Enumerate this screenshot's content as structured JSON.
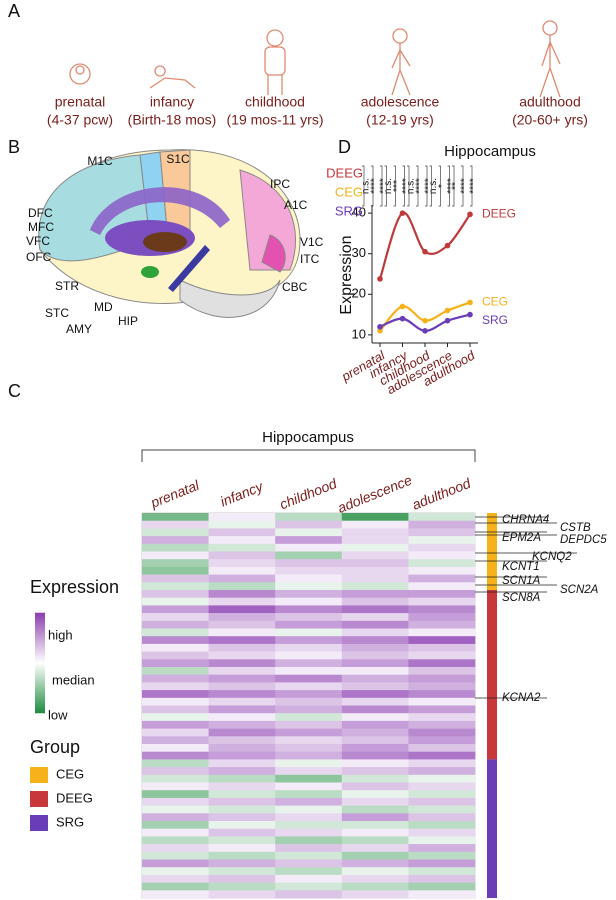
{
  "panel_a": {
    "label": "A",
    "stages": [
      {
        "name": "prenatal",
        "range": "(4-37 pcw)"
      },
      {
        "name": "infancy",
        "range": "(Birth-18 mos)"
      },
      {
        "name": "childhood",
        "range": "(19 mos-11 yrs)"
      },
      {
        "name": "adolescence",
        "range": "(12-19 yrs)"
      },
      {
        "name": "adulthood",
        "range": "(20-60+ yrs)"
      }
    ]
  },
  "panel_b": {
    "label": "B",
    "regions": [
      "M1C",
      "S1C",
      "IPC",
      "DFC",
      "MFC",
      "VFC",
      "OFC",
      "A1C",
      "V1C",
      "ITC",
      "CBC",
      "STR",
      "MD",
      "STC",
      "AMY",
      "HIP"
    ]
  },
  "panel_d": {
    "label": "D",
    "type": "line",
    "title": "Hippocampus",
    "ylabel": "Expression",
    "categories": [
      "prenatal",
      "infancy",
      "childhood",
      "adolescence",
      "adulthood"
    ],
    "series": [
      {
        "name": "DEEG",
        "color": "#c0393b",
        "values": [
          23.8,
          40,
          30.5,
          32,
          39.7
        ]
      },
      {
        "name": "CEG",
        "color": "#f5b21b",
        "values": [
          11,
          17,
          13.5,
          16,
          18
        ]
      },
      {
        "name": "SRG",
        "color": "#6a3db8",
        "values": [
          12,
          14,
          11,
          13.5,
          15
        ]
      }
    ],
    "ylim": [
      8,
      42
    ],
    "yticks": [
      10,
      20,
      30,
      40
    ],
    "significance": [
      [
        "n.s.",
        "****",
        "****"
      ],
      [
        "n.s.",
        "***",
        "****"
      ],
      [
        "n.s.",
        "****",
        "****"
      ],
      [
        "n.s.",
        "*",
        "****"
      ],
      [
        "**",
        "****",
        "****"
      ]
    ]
  },
  "panel_c": {
    "label": "C",
    "title": "Hippocampus",
    "columns": [
      "prenatal",
      "infancy",
      "childhood",
      "adolescence",
      "adulthood"
    ],
    "legend_title": "Expression",
    "legend_labels": [
      "high",
      "median",
      "low"
    ],
    "group_title": "Group",
    "genes": [
      "CHRNA4",
      "CSTB",
      "EPM2A",
      "DEPDC5",
      "KCNQ2",
      "KCNT1",
      "SCN1A",
      "SCN2A",
      "SCN8A",
      "KCNA2"
    ],
    "groups": [
      {
        "name": "CEG",
        "color": "#f5b21b",
        "rows": [
          [
            -0.6,
            0.1,
            -0.3,
            -0.8,
            -0.2
          ],
          [
            0.2,
            -0.1,
            0.3,
            0.1,
            0.4
          ],
          [
            -0.2,
            0.3,
            -0.1,
            0.2,
            0.3
          ],
          [
            0.4,
            0.1,
            0.5,
            0.2,
            -0.1
          ],
          [
            -0.3,
            -0.2,
            0.1,
            -0.1,
            0.2
          ],
          [
            0.1,
            0.3,
            -0.4,
            0.2,
            0.1
          ],
          [
            -0.4,
            0.2,
            0.3,
            0.3,
            -0.2
          ],
          [
            -0.5,
            0.1,
            0.2,
            0.2,
            0.1
          ],
          [
            0.3,
            0.4,
            0.1,
            0.2,
            0.4
          ],
          [
            -0.2,
            -0.3,
            -0.1,
            -0.2,
            0.1
          ]
        ]
      },
      {
        "name": "DEEG",
        "color": "#c8373a",
        "rows": [
          [
            0.3,
            0.6,
            0.4,
            0.5,
            0.5
          ],
          [
            -0.1,
            0.2,
            0.1,
            0.3,
            0.2
          ],
          [
            0.5,
            0.8,
            0.6,
            0.7,
            0.6
          ],
          [
            0.2,
            0.4,
            0.3,
            0.2,
            0.5
          ],
          [
            0.4,
            0.3,
            0.5,
            0.6,
            0.4
          ],
          [
            -0.2,
            0.1,
            -0.1,
            0.2,
            0.1
          ],
          [
            0.6,
            0.7,
            0.5,
            0.6,
            0.8
          ],
          [
            0.1,
            0.3,
            0.2,
            0.4,
            0.3
          ],
          [
            0.3,
            0.2,
            0.1,
            0.3,
            0.2
          ],
          [
            0.5,
            0.6,
            0.4,
            0.5,
            0.7
          ],
          [
            -0.3,
            0.2,
            0.1,
            0.1,
            0.3
          ],
          [
            0.4,
            0.5,
            0.6,
            0.4,
            0.5
          ],
          [
            0.2,
            0.3,
            0.2,
            0.3,
            0.4
          ],
          [
            0.7,
            0.6,
            0.5,
            0.7,
            0.6
          ],
          [
            0.1,
            0.2,
            0.3,
            0.2,
            0.1
          ],
          [
            0.3,
            0.5,
            0.4,
            0.6,
            0.5
          ],
          [
            -0.1,
            0.1,
            -0.2,
            0.1,
            0.2
          ],
          [
            0.5,
            0.4,
            0.3,
            0.5,
            0.4
          ],
          [
            0.2,
            0.6,
            0.5,
            0.4,
            0.6
          ],
          [
            0.4,
            0.3,
            0.2,
            0.3,
            0.5
          ],
          [
            0.1,
            0.4,
            0.3,
            0.5,
            0.3
          ],
          [
            0.6,
            0.5,
            0.4,
            0.6,
            0.7
          ]
        ]
      },
      {
        "name": "SRG",
        "color": "#6a3db8",
        "rows": [
          [
            -0.3,
            0.2,
            -0.1,
            0.1,
            0.2
          ],
          [
            0.3,
            0.4,
            0.2,
            0.3,
            0.4
          ],
          [
            -0.2,
            -0.3,
            -0.5,
            -0.2,
            -0.1
          ],
          [
            0.1,
            0.2,
            0.1,
            0.3,
            0.2
          ],
          [
            -0.5,
            -0.2,
            -0.3,
            -0.1,
            -0.2
          ],
          [
            0.2,
            0.3,
            0.4,
            0.2,
            0.3
          ],
          [
            -0.1,
            -0.2,
            -0.1,
            -0.3,
            -0.2
          ],
          [
            0.4,
            0.3,
            0.2,
            0.5,
            0.3
          ],
          [
            -0.4,
            -0.1,
            -0.2,
            -0.2,
            -0.3
          ],
          [
            0.1,
            0.3,
            0.2,
            0.1,
            0.2
          ],
          [
            -0.3,
            -0.2,
            -0.4,
            -0.3,
            -0.1
          ],
          [
            0.2,
            0.1,
            0.3,
            0.2,
            0.4
          ],
          [
            -0.2,
            -0.3,
            -0.2,
            -0.4,
            -0.3
          ],
          [
            0.5,
            0.4,
            0.3,
            0.4,
            0.5
          ],
          [
            -0.1,
            -0.2,
            -0.3,
            -0.1,
            -0.2
          ],
          [
            0.2,
            0.3,
            0.1,
            0.2,
            0.3
          ],
          [
            -0.4,
            -0.3,
            -0.2,
            -0.3,
            -0.4
          ],
          [
            0.1,
            0.2,
            0.3,
            0.2,
            0.1
          ]
        ]
      }
    ]
  }
}
